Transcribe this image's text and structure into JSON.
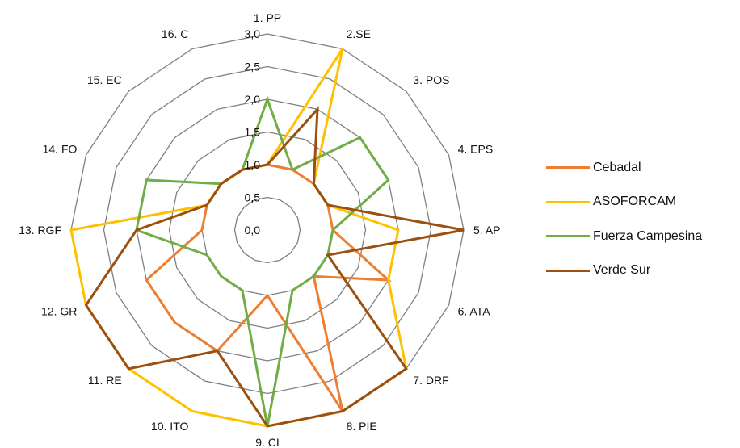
{
  "chart_data": {
    "type": "radar",
    "categories": [
      "1. PP",
      "2.SE",
      "3. POS",
      "4. EPS",
      "5. AP",
      "6. ATA",
      "7. DRF",
      "8. PIE",
      "9. CI",
      "10. ITO",
      "11. RE",
      "12. GR",
      "13. RGF",
      "14. FO",
      "15. EC",
      "16. C"
    ],
    "rlim": [
      0,
      3
    ],
    "tick_values": [
      0,
      0.5,
      1,
      1.5,
      2,
      2.5,
      3
    ],
    "tick_labels": [
      "0,0",
      "0,5",
      "1,0",
      "1,5",
      "2,0",
      "2,5",
      "3,0"
    ],
    "series": [
      {
        "name": "Cebadal",
        "color": "#ED7D31",
        "values": [
          1.0,
          1.0,
          1.0,
          1.0,
          1.0,
          2.0,
          1.0,
          3.0,
          1.0,
          2.0,
          2.0,
          2.0,
          1.0,
          1.0,
          1.0,
          1.0
        ]
      },
      {
        "name": "ASOFORCAM",
        "color": "#FFC000",
        "values": [
          1.0,
          3.0,
          1.0,
          1.0,
          2.0,
          2.0,
          3.0,
          3.0,
          3.0,
          3.0,
          3.0,
          3.0,
          3.0,
          1.0,
          1.0,
          1.0
        ]
      },
      {
        "name": "Fuerza Campesina",
        "color": "#70AD47",
        "values": [
          2.0,
          1.0,
          2.0,
          2.0,
          1.0,
          1.0,
          1.0,
          1.0,
          3.0,
          1.0,
          1.0,
          1.0,
          2.0,
          2.0,
          1.0,
          1.0
        ]
      },
      {
        "name": "Verde Sur",
        "color": "#9C4F0E",
        "values": [
          1.0,
          2.0,
          1.0,
          1.0,
          3.0,
          1.0,
          3.0,
          3.0,
          3.0,
          2.0,
          3.0,
          3.0,
          2.0,
          1.0,
          1.0,
          1.0
        ]
      }
    ],
    "grid": true,
    "legend_position": "right"
  }
}
